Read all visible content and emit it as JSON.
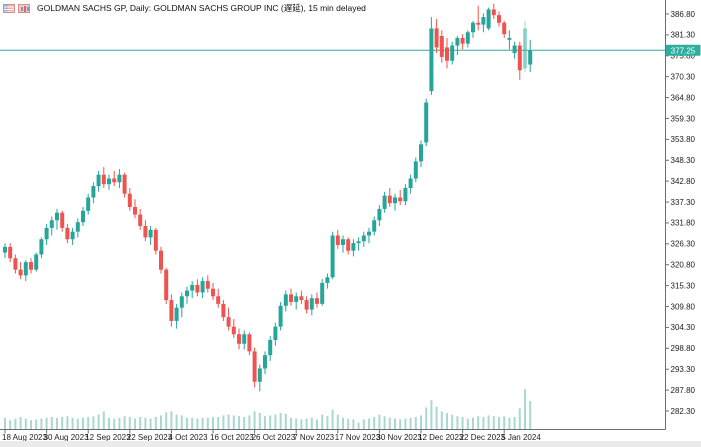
{
  "header": {
    "title": "GOLDMAN SACHS GP, Daily:  GOLDMAN SACHS GROUP INC (遅延), 15 min delayed"
  },
  "colors": {
    "up": "#26a69a",
    "down": "#ef5350",
    "volume": "#a9d7d3",
    "price_line": "#2fae9f",
    "badge_bg": "#2fae9f",
    "badge_text": "#ffffff",
    "axis": "#6e6e6e",
    "label_text": "#1c1c1c",
    "background": "#ffffff",
    "bottom_strip": "#ebebeb"
  },
  "price_axis": {
    "current_price": "377.25",
    "ticks": [
      "386.80",
      "381.30",
      "375.80",
      "370.30",
      "364.80",
      "359.30",
      "353.80",
      "348.30",
      "342.80",
      "337.30",
      "331.80",
      "326.30",
      "320.80",
      "315.30",
      "309.80",
      "304.30",
      "298.80",
      "293.30",
      "287.80",
      "282.30"
    ]
  },
  "time_axis": {
    "labels": [
      "18 Aug 2023",
      "30 Aug 2023",
      "12 Sep 2023",
      "22 Sep 2023",
      "4 Oct 2023",
      "16 Oct 2023",
      "26 Oct 2023",
      "7 Nov 2023",
      "17 Nov 2023",
      "30 Nov 2023",
      "12 Dec 2023",
      "22 Dec 2023",
      "5 Jan 2024"
    ]
  },
  "chart_data": {
    "type": "candlestick",
    "symbol": "GOLDMAN SACHS GP",
    "timeframe": "Daily",
    "description": "GOLDMAN SACHS GROUP INC",
    "delay_note": "15 min delayed",
    "current_price": 377.25,
    "price_range": [
      282.3,
      386.8
    ],
    "labels_every_n_candles": 8,
    "candle_columns": [
      "date",
      "open",
      "high",
      "low",
      "close",
      "volume_pct",
      "faded"
    ],
    "candles": [
      [
        "18 Aug",
        324.0,
        326.5,
        322.5,
        325.5,
        28
      ],
      [
        "21 Aug",
        325.5,
        326.5,
        321.5,
        322.5,
        22
      ],
      [
        "22 Aug",
        322.5,
        323.5,
        318.5,
        319.5,
        26
      ],
      [
        "23 Aug",
        319.5,
        321.5,
        317.0,
        318.0,
        30
      ],
      [
        "24 Aug",
        318.0,
        322.0,
        316.5,
        321.5,
        26
      ],
      [
        "25 Aug",
        321.5,
        322.5,
        318.5,
        319.5,
        22
      ],
      [
        "28 Aug",
        319.5,
        324.0,
        319.0,
        323.5,
        24
      ],
      [
        "29 Aug",
        323.5,
        328.0,
        322.5,
        327.5,
        26
      ],
      [
        "30 Aug",
        327.5,
        331.5,
        326.0,
        330.5,
        28
      ],
      [
        "31 Aug",
        330.5,
        333.5,
        328.5,
        332.5,
        30
      ],
      [
        "1 Sep",
        332.5,
        335.5,
        330.0,
        334.5,
        28
      ],
      [
        "5 Sep",
        334.5,
        335.0,
        329.5,
        330.5,
        30
      ],
      [
        "6 Sep",
        330.5,
        331.5,
        326.5,
        327.5,
        32
      ],
      [
        "7 Sep",
        327.5,
        330.5,
        326.0,
        329.5,
        28
      ],
      [
        "8 Sep",
        329.5,
        333.0,
        328.0,
        332.0,
        26
      ],
      [
        "11 Sep",
        332.0,
        336.0,
        331.0,
        335.0,
        28
      ],
      [
        "12 Sep",
        335.0,
        339.5,
        334.0,
        338.5,
        30
      ],
      [
        "13 Sep",
        338.5,
        342.5,
        337.0,
        341.5,
        32
      ],
      [
        "14 Sep",
        341.5,
        345.5,
        340.0,
        344.5,
        36
      ],
      [
        "15 Sep",
        344.5,
        346.5,
        341.0,
        342.0,
        44
      ],
      [
        "18 Sep",
        342.0,
        344.5,
        340.5,
        343.5,
        28
      ],
      [
        "19 Sep",
        343.5,
        345.5,
        341.5,
        342.5,
        26
      ],
      [
        "20 Sep",
        342.5,
        346.0,
        341.0,
        344.5,
        28
      ],
      [
        "21 Sep",
        344.5,
        345.0,
        338.5,
        339.5,
        32
      ],
      [
        "22 Sep",
        339.5,
        341.0,
        335.0,
        336.0,
        30
      ],
      [
        "25 Sep",
        336.0,
        338.0,
        333.0,
        334.0,
        26
      ],
      [
        "26 Sep",
        334.0,
        335.5,
        330.0,
        331.0,
        30
      ],
      [
        "27 Sep",
        331.0,
        332.5,
        327.0,
        328.0,
        28
      ],
      [
        "28 Sep",
        328.0,
        331.0,
        326.0,
        330.0,
        26
      ],
      [
        "29 Sep",
        330.0,
        330.5,
        323.5,
        324.5,
        30
      ],
      [
        "2 Oct",
        324.5,
        325.5,
        318.5,
        319.5,
        34
      ],
      [
        "3 Oct",
        319.5,
        320.0,
        310.5,
        311.5,
        42
      ],
      [
        "4 Oct",
        311.5,
        313.0,
        304.5,
        306.0,
        44
      ],
      [
        "5 Oct",
        306.0,
        310.5,
        304.0,
        309.5,
        36
      ],
      [
        "6 Oct",
        309.5,
        313.5,
        307.0,
        312.5,
        34
      ],
      [
        "9 Oct",
        312.5,
        315.0,
        310.5,
        314.0,
        28
      ],
      [
        "10 Oct",
        314.0,
        316.5,
        312.0,
        315.5,
        28
      ],
      [
        "11 Oct",
        315.5,
        317.0,
        312.5,
        313.5,
        26
      ],
      [
        "12 Oct",
        313.5,
        317.5,
        312.0,
        316.5,
        28
      ],
      [
        "13 Oct",
        316.5,
        318.0,
        313.5,
        314.5,
        28
      ],
      [
        "16 Oct",
        314.5,
        316.0,
        311.5,
        312.5,
        30
      ],
      [
        "17 Oct",
        312.5,
        314.5,
        309.5,
        310.5,
        30
      ],
      [
        "18 Oct",
        310.5,
        311.5,
        306.0,
        307.0,
        34
      ],
      [
        "19 Oct",
        307.0,
        309.5,
        303.5,
        304.5,
        36
      ],
      [
        "20 Oct",
        304.5,
        306.5,
        301.5,
        302.5,
        34
      ],
      [
        "23 Oct",
        302.5,
        304.0,
        298.5,
        300.0,
        32
      ],
      [
        "24 Oct",
        300.0,
        303.5,
        298.5,
        302.5,
        30
      ],
      [
        "25 Oct",
        302.5,
        303.0,
        297.0,
        298.0,
        34
      ],
      [
        "26 Oct",
        298.0,
        299.0,
        288.5,
        290.0,
        44
      ],
      [
        "27 Oct",
        290.0,
        294.5,
        287.5,
        293.5,
        40
      ],
      [
        "30 Oct",
        293.5,
        298.0,
        292.0,
        297.0,
        32
      ],
      [
        "31 Oct",
        297.0,
        302.0,
        295.5,
        301.0,
        34
      ],
      [
        "1 Nov",
        301.0,
        305.5,
        299.5,
        304.5,
        36
      ],
      [
        "2 Nov",
        304.5,
        311.0,
        303.5,
        310.0,
        40
      ],
      [
        "3 Nov",
        310.0,
        314.0,
        308.5,
        313.0,
        38
      ],
      [
        "6 Nov",
        313.0,
        314.5,
        310.0,
        311.0,
        28
      ],
      [
        "7 Nov",
        311.0,
        313.5,
        309.0,
        312.5,
        26
      ],
      [
        "8 Nov",
        312.5,
        314.0,
        310.5,
        311.5,
        24
      ],
      [
        "9 Nov",
        311.5,
        312.5,
        308.0,
        309.0,
        26
      ],
      [
        "10 Nov",
        309.0,
        313.0,
        307.5,
        312.0,
        28
      ],
      [
        "13 Nov",
        312.0,
        313.5,
        309.5,
        310.5,
        24
      ],
      [
        "14 Nov",
        310.5,
        317.0,
        310.0,
        316.0,
        36
      ],
      [
        "15 Nov",
        316.0,
        318.5,
        314.5,
        317.5,
        32
      ],
      [
        "16 Nov",
        317.5,
        329.5,
        317.0,
        328.5,
        48
      ],
      [
        "17 Nov",
        328.5,
        330.0,
        325.0,
        326.0,
        36
      ],
      [
        "20 Nov",
        326.0,
        328.5,
        324.0,
        327.5,
        28
      ],
      [
        "21 Nov",
        327.5,
        328.0,
        323.5,
        324.5,
        26
      ],
      [
        "22 Nov",
        324.5,
        327.5,
        323.0,
        326.5,
        24
      ],
      [
        "24 Nov",
        326.5,
        328.0,
        324.5,
        327.0,
        16
      ],
      [
        "27 Nov",
        327.0,
        329.5,
        325.5,
        328.5,
        24
      ],
      [
        "28 Nov",
        328.5,
        330.5,
        326.5,
        329.5,
        26
      ],
      [
        "29 Nov",
        329.5,
        333.5,
        328.5,
        332.5,
        30
      ],
      [
        "30 Nov",
        332.5,
        336.5,
        331.0,
        335.5,
        36
      ],
      [
        "1 Dec",
        335.5,
        340.0,
        334.5,
        339.0,
        32
      ],
      [
        "4 Dec",
        339.0,
        341.0,
        336.0,
        337.0,
        28
      ],
      [
        "5 Dec",
        337.0,
        339.5,
        335.0,
        338.5,
        26
      ],
      [
        "6 Dec",
        338.5,
        340.5,
        336.5,
        337.5,
        24
      ],
      [
        "7 Dec",
        337.5,
        342.0,
        336.5,
        341.0,
        26
      ],
      [
        "8 Dec",
        341.0,
        344.5,
        339.5,
        343.5,
        28
      ],
      [
        "11 Dec",
        343.5,
        349.0,
        342.5,
        348.0,
        30
      ],
      [
        "12 Dec",
        348.0,
        353.5,
        346.5,
        352.5,
        34
      ],
      [
        "13 Dec",
        353.0,
        364.5,
        352.0,
        363.5,
        54
      ],
      [
        "14 Dec",
        366.5,
        386.0,
        365.5,
        383.0,
        72
      ],
      [
        "15 Dec",
        383.0,
        385.5,
        376.5,
        378.0,
        56
      ],
      [
        "18 Dec",
        381.0,
        382.5,
        374.0,
        375.5,
        44
      ],
      [
        "19 Dec",
        378.0,
        380.5,
        372.5,
        374.5,
        40
      ],
      [
        "20 Dec",
        374.5,
        379.5,
        373.5,
        378.5,
        36
      ],
      [
        "21 Dec",
        378.5,
        381.0,
        376.0,
        380.5,
        32
      ],
      [
        "22 Dec",
        380.5,
        381.5,
        377.5,
        379.0,
        30
      ],
      [
        "26 Dec",
        379.0,
        382.5,
        378.0,
        382.0,
        26
      ],
      [
        "27 Dec",
        382.0,
        385.0,
        380.5,
        384.5,
        28
      ],
      [
        "28 Dec",
        384.5,
        389.0,
        382.5,
        384.0,
        32
      ],
      [
        "29 Dec",
        384.0,
        387.0,
        382.0,
        386.0,
        30
      ],
      [
        "2 Jan",
        383.0,
        388.5,
        382.5,
        388.0,
        34
      ],
      [
        "3 Jan",
        388.0,
        389.5,
        385.5,
        386.5,
        32
      ],
      [
        "4 Jan",
        386.5,
        387.5,
        383.5,
        384.5,
        30
      ],
      [
        "5 Jan",
        384.5,
        385.0,
        380.5,
        381.5,
        32
      ],
      [
        "8 Jan",
        380.0,
        382.5,
        377.5,
        380.5,
        28
      ],
      [
        "9 Jan",
        376.5,
        379.5,
        375.0,
        378.5,
        30
      ],
      [
        "10 Jan",
        378.5,
        379.5,
        369.5,
        372.0,
        52
      ],
      [
        "11 Jan",
        372.5,
        385.0,
        371.5,
        383.0,
        100,
        true
      ],
      [
        "12 Jan",
        373.5,
        380.0,
        371.5,
        377.25,
        70
      ]
    ]
  }
}
